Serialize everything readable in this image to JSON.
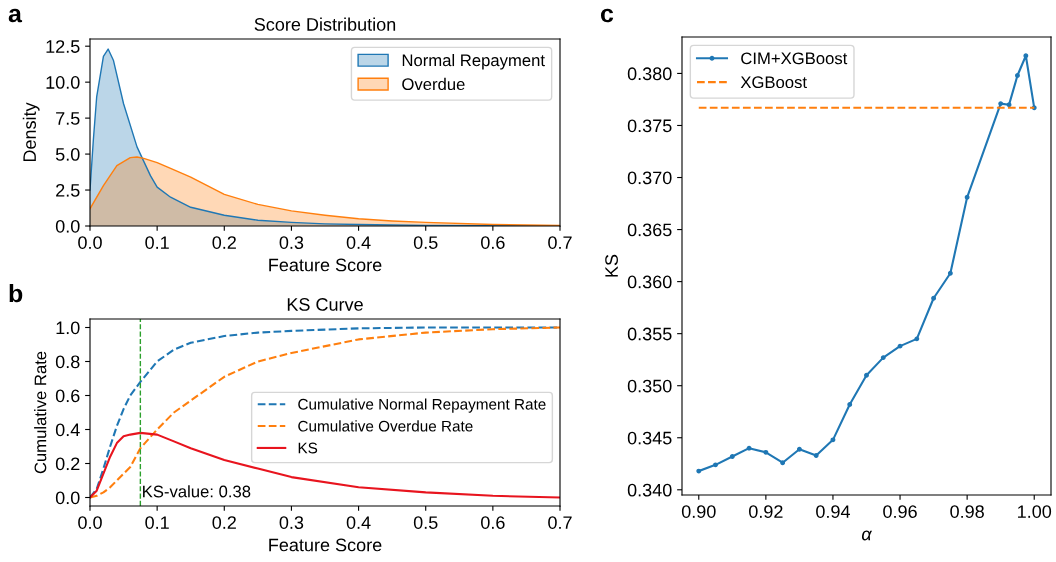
{
  "chart_data": [
    {
      "type": "area",
      "title": "Score Distribution",
      "xlabel": "Feature Score",
      "ylabel": "Density",
      "annotations": [
        "a"
      ],
      "legend": "top right",
      "grid": false,
      "xlim": [
        0,
        0.7
      ],
      "xticks": [
        {
          "value": 0,
          "label": "0.0"
        },
        0.1,
        0.2,
        0.3,
        0.4,
        0.5,
        0.6,
        0.7
      ],
      "ylim": [
        0,
        13.0
      ],
      "yticks": [
        {
          "value": 0,
          "label": "0.0"
        },
        2.5,
        {
          "value": 5,
          "label": "5.0"
        },
        7.5,
        {
          "value": 10,
          "label": "10.0"
        },
        12.5
      ],
      "series": [
        {
          "name": "Normal Repayment",
          "color": "#1f77b4",
          "x": [
            0,
            0.005,
            0.01,
            0.02,
            0.027,
            0.035,
            0.05,
            0.07,
            0.09,
            0.1,
            0.12,
            0.15,
            0.2,
            0.25,
            0.3,
            0.35,
            0.4,
            0.5,
            0.6,
            0.7
          ],
          "values": [
            2.5,
            6,
            9,
            11.8,
            12.3,
            11.5,
            8.5,
            5.5,
            3.5,
            2.7,
            2.0,
            1.3,
            0.75,
            0.4,
            0.25,
            0.15,
            0.1,
            0.04,
            0.02,
            0.01
          ]
        },
        {
          "name": "Overdue",
          "color": "#ff7f0e",
          "x": [
            0,
            0.02,
            0.04,
            0.06,
            0.07,
            0.08,
            0.1,
            0.12,
            0.15,
            0.2,
            0.25,
            0.3,
            0.35,
            0.4,
            0.45,
            0.5,
            0.6,
            0.7
          ],
          "values": [
            1.2,
            2.8,
            4.2,
            4.75,
            4.8,
            4.7,
            4.4,
            4.0,
            3.4,
            2.2,
            1.5,
            1.05,
            0.75,
            0.5,
            0.35,
            0.25,
            0.1,
            0.03
          ]
        }
      ]
    },
    {
      "type": "line",
      "title": "KS Curve",
      "xlabel": "Feature Score",
      "ylabel": "Cumulative Rate",
      "annotations": [
        "b",
        "KS-value: 0.38"
      ],
      "legend": "right",
      "grid": false,
      "xlim": [
        0,
        0.7
      ],
      "xticks": [
        {
          "value": 0,
          "label": "0.0"
        },
        0.1,
        0.2,
        0.3,
        0.4,
        0.5,
        0.6,
        0.7
      ],
      "ylim": [
        -0.05,
        1.05
      ],
      "yticks": [
        {
          "value": 0,
          "label": "0.0"
        },
        0.2,
        0.4,
        0.6,
        0.8,
        {
          "value": 1,
          "label": "1.0"
        }
      ],
      "x": [
        0,
        0.01,
        0.02,
        0.03,
        0.04,
        0.05,
        0.06,
        0.075,
        0.1,
        0.125,
        0.15,
        0.2,
        0.25,
        0.3,
        0.4,
        0.5,
        0.6,
        0.7
      ],
      "ref_lines": [
        {
          "axis": "x",
          "value": 0.075,
          "color": "#2ca02c",
          "line_style": "dashed"
        }
      ],
      "series": [
        {
          "name": "Cumulative Normal Repayment Rate",
          "color": "#1f77b4",
          "line_style": "dashed",
          "values": [
            0,
            0.05,
            0.17,
            0.3,
            0.42,
            0.52,
            0.6,
            0.68,
            0.8,
            0.87,
            0.91,
            0.95,
            0.97,
            0.98,
            0.995,
            1.0,
            1.0,
            1.0
          ]
        },
        {
          "name": "Cumulative Overdue Rate",
          "color": "#ff7f0e",
          "line_style": "dashed",
          "values": [
            0,
            0.01,
            0.03,
            0.06,
            0.1,
            0.14,
            0.18,
            0.29,
            0.4,
            0.5,
            0.57,
            0.71,
            0.8,
            0.85,
            0.93,
            0.97,
            0.99,
            1.0
          ]
        },
        {
          "name": "KS",
          "color": "#e8141e",
          "line_style": "solid",
          "values": [
            0,
            0.04,
            0.14,
            0.24,
            0.32,
            0.36,
            0.37,
            0.38,
            0.37,
            0.33,
            0.29,
            0.22,
            0.17,
            0.12,
            0.06,
            0.03,
            0.01,
            0.0
          ]
        }
      ]
    },
    {
      "type": "line",
      "xlabel": "α",
      "ylabel": "KS",
      "annotations": [
        "c"
      ],
      "legend": "top left",
      "grid": false,
      "xlim": [
        0.895,
        1.005
      ],
      "xticks": [
        {
          "value": 0.9,
          "label": "0.90"
        },
        0.92,
        0.94,
        0.96,
        0.98,
        {
          "value": 1,
          "label": "1.00"
        }
      ],
      "ylim": [
        0.3395,
        0.3835
      ],
      "yticks": [
        {
          "value": 0.34,
          "label": "0.340"
        },
        0.345,
        {
          "value": 0.35,
          "label": "0.350"
        },
        0.355,
        {
          "value": 0.36,
          "label": "0.360"
        },
        0.365,
        {
          "value": 0.37,
          "label": "0.370"
        },
        0.375,
        {
          "value": 0.38,
          "label": "0.380"
        }
      ],
      "series": [
        {
          "name": "CIM+XGBoost",
          "color": "#1f77b4",
          "marker": "circle",
          "line_style": "solid",
          "x": [
            0.9,
            0.905,
            0.91,
            0.915,
            0.92,
            0.925,
            0.93,
            0.935,
            0.94,
            0.945,
            0.95,
            0.955,
            0.96,
            0.965,
            0.97,
            0.975,
            0.98,
            0.99,
            0.9925,
            0.995,
            0.9975,
            1.0
          ],
          "values": [
            0.3418,
            0.3424,
            0.3432,
            0.344,
            0.3436,
            0.3426,
            0.3439,
            0.3433,
            0.3448,
            0.3482,
            0.351,
            0.3527,
            0.3538,
            0.3545,
            0.3584,
            0.3608,
            0.3681,
            0.3771,
            0.377,
            0.3798,
            0.3817,
            0.3767
          ]
        },
        {
          "name": "XGBoost",
          "color": "#ff7f0e",
          "marker": "none",
          "line_style": "dashed",
          "x": [
            0.9,
            1.0
          ],
          "values": [
            0.3767,
            0.3767
          ]
        }
      ]
    }
  ]
}
